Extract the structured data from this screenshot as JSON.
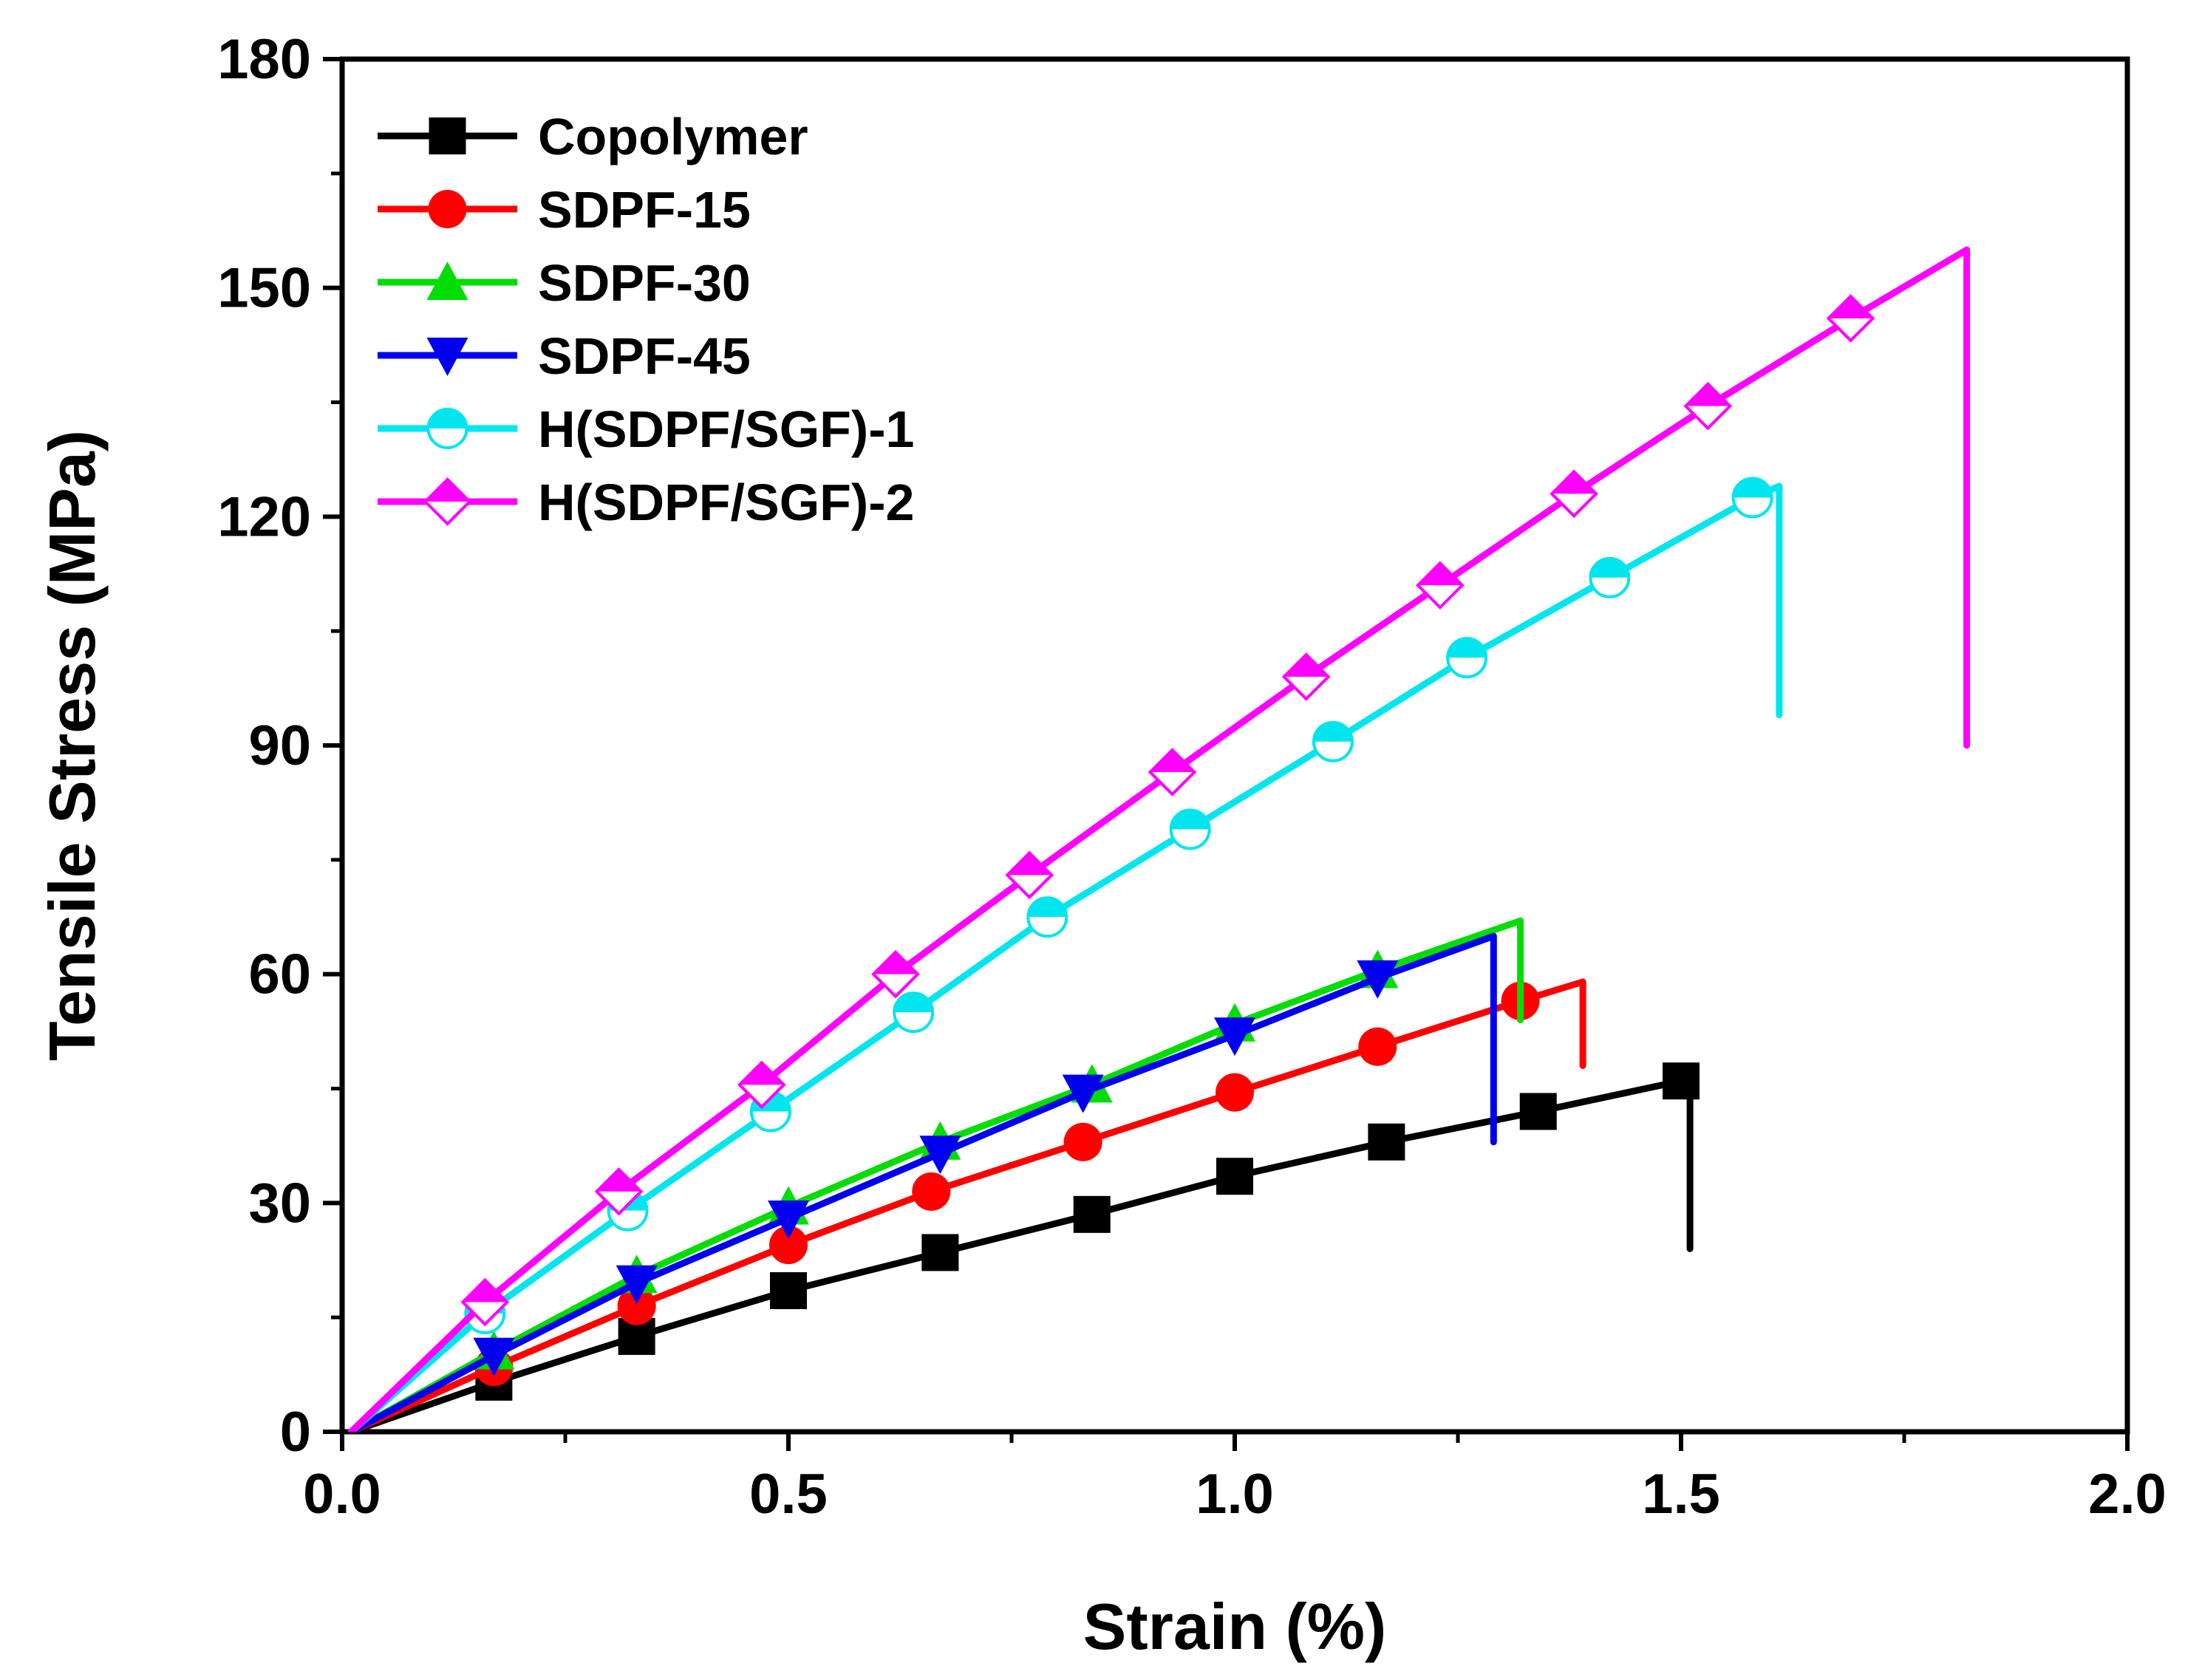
{
  "chart_data": {
    "type": "line",
    "title": "",
    "xlabel": "Strain (%)",
    "ylabel": "Tensile Stress (MPa)",
    "xlim": [
      0,
      2.0
    ],
    "ylim": [
      0,
      180
    ],
    "x_ticks": [
      "0.0",
      "0.5",
      "1.0",
      "1.5",
      "2.0"
    ],
    "y_ticks": [
      "0",
      "30",
      "60",
      "90",
      "120",
      "150",
      "180"
    ],
    "legend_position": "top-left",
    "series": [
      {
        "name": "Copolymer",
        "color": "#000000",
        "marker": "square",
        "x": [
          0.01,
          0.17,
          0.33,
          0.5,
          0.67,
          0.84,
          1.0,
          1.17,
          1.34,
          1.5,
          1.51,
          1.51
        ],
        "y": [
          0,
          6.5,
          12.5,
          18.5,
          23.5,
          28.5,
          33.5,
          38,
          42,
          46,
          46,
          24
        ],
        "markers_x": [
          0.17,
          0.33,
          0.5,
          0.67,
          0.84,
          1.0,
          1.17,
          1.34,
          1.5
        ],
        "markers_y": [
          6.5,
          12.5,
          18.5,
          23.5,
          28.5,
          33.5,
          38,
          42,
          46
        ]
      },
      {
        "name": "SDPF-15",
        "color": "#ff0000",
        "marker": "circle",
        "x": [
          0.01,
          0.17,
          0.33,
          0.5,
          0.66,
          0.83,
          1.0,
          1.16,
          1.32,
          1.39,
          1.39
        ],
        "y": [
          0,
          8.5,
          16.5,
          24.5,
          31.5,
          38,
          44.5,
          50.5,
          56.5,
          59,
          48
        ],
        "markers_x": [
          0.17,
          0.33,
          0.5,
          0.66,
          0.83,
          1.0,
          1.16,
          1.32
        ],
        "markers_y": [
          8.5,
          16.5,
          24.5,
          31.5,
          38,
          44.5,
          50.5,
          56.5
        ]
      },
      {
        "name": "SDPF-30",
        "color": "#00dd00",
        "marker": "triangle-up",
        "x": [
          0.01,
          0.17,
          0.33,
          0.5,
          0.67,
          0.84,
          1.0,
          1.16,
          1.32,
          1.32
        ],
        "y": [
          0,
          10.5,
          20.5,
          29.5,
          38,
          45.5,
          53.5,
          60.5,
          67,
          54
        ],
        "markers_x": [
          0.17,
          0.33,
          0.5,
          0.67,
          0.84,
          1.0,
          1.16
        ],
        "markers_y": [
          10.5,
          20.5,
          29.5,
          38,
          45.5,
          53.5,
          60.5
        ]
      },
      {
        "name": "SDPF-45",
        "color": "#0000ee",
        "marker": "triangle-down",
        "x": [
          0.01,
          0.17,
          0.33,
          0.5,
          0.67,
          0.83,
          1.0,
          1.16,
          1.29,
          1.29
        ],
        "y": [
          0,
          10,
          19.5,
          28,
          36.5,
          44.5,
          52,
          59.5,
          65,
          38
        ],
        "markers_x": [
          0.17,
          0.33,
          0.5,
          0.67,
          0.83,
          1.0,
          1.16
        ],
        "markers_y": [
          10,
          19.5,
          28,
          36.5,
          44.5,
          52,
          59.5
        ]
      },
      {
        "name": "H(SDPF/SGF)-1",
        "color": "#00e5ee",
        "marker": "half-circle",
        "x": [
          0.01,
          0.16,
          0.32,
          0.48,
          0.64,
          0.79,
          0.95,
          1.11,
          1.26,
          1.42,
          1.58,
          1.61,
          1.61,
          1.61
        ],
        "y": [
          0,
          15.5,
          29,
          42,
          55,
          67.5,
          79,
          90.5,
          101.5,
          112,
          122.5,
          124,
          124,
          94
        ],
        "markers_x": [
          0.16,
          0.32,
          0.48,
          0.64,
          0.79,
          0.95,
          1.11,
          1.26,
          1.42,
          1.58
        ],
        "markers_y": [
          15.5,
          29,
          42,
          55,
          67.5,
          79,
          90.5,
          101.5,
          112,
          122.5
        ]
      },
      {
        "name": "H(SDPF/SGF)-2",
        "color": "#ff00ff",
        "marker": "half-diamond",
        "x": [
          0.01,
          0.16,
          0.31,
          0.47,
          0.62,
          0.77,
          0.93,
          1.08,
          1.23,
          1.38,
          1.53,
          1.69,
          1.82,
          1.82
        ],
        "y": [
          0,
          17,
          31.5,
          45.5,
          60,
          73,
          86.5,
          99,
          111,
          123,
          134.5,
          146,
          155,
          90
        ],
        "markers_x": [
          0.16,
          0.31,
          0.47,
          0.62,
          0.77,
          0.93,
          1.08,
          1.23,
          1.38,
          1.53,
          1.69
        ],
        "markers_y": [
          17,
          31.5,
          45.5,
          60,
          73,
          86.5,
          99,
          111,
          123,
          134.5,
          146
        ]
      }
    ]
  }
}
